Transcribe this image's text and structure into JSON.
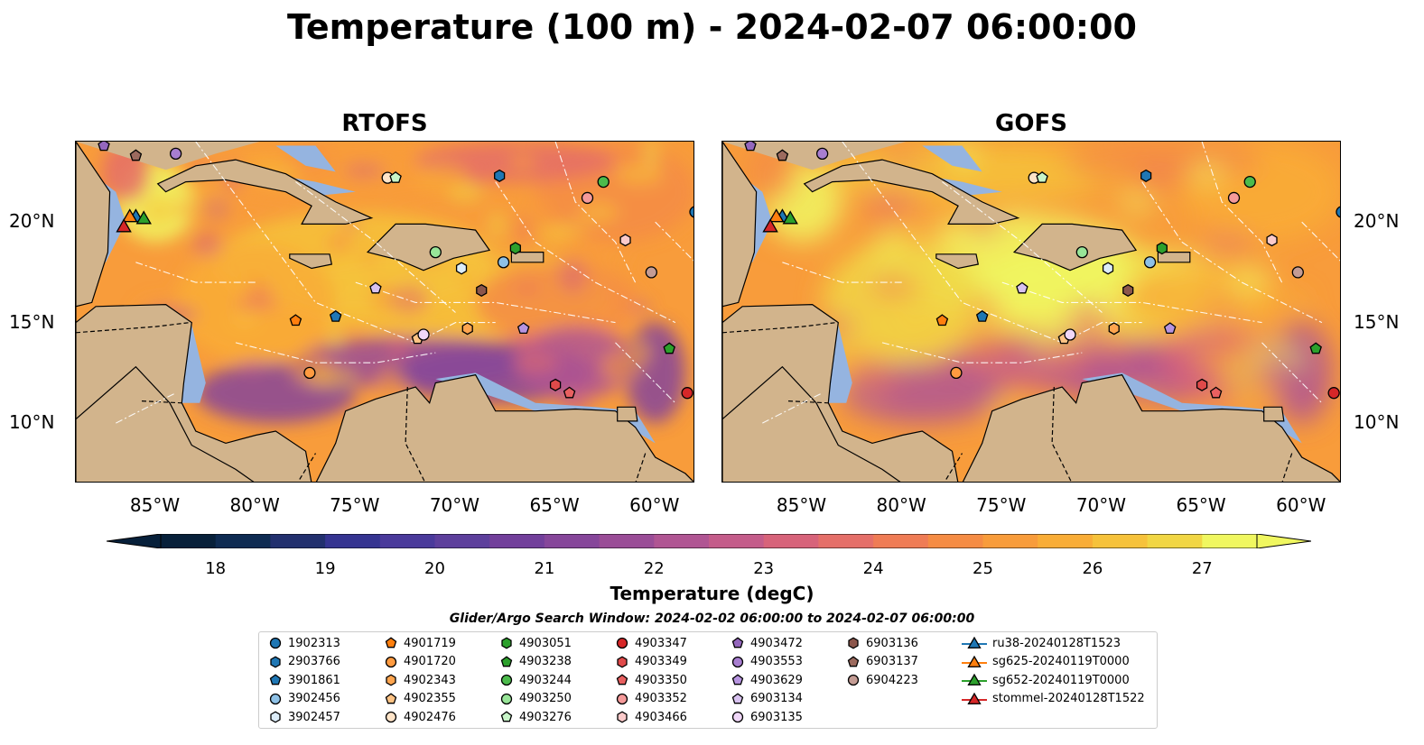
{
  "title": "Temperature (100 m) - 2024-02-07 06:00:00",
  "colors": {
    "land": "#d2b48c",
    "shallow": "#95b4e0",
    "deep": "#07203a",
    "cmap": [
      "#07203a",
      "#0e2b52",
      "#22306e",
      "#353491",
      "#4a3a9b",
      "#5d3f9c",
      "#723f9b",
      "#86469a",
      "#9a4d97",
      "#b05593",
      "#c45c8a",
      "#d7637a",
      "#e56f69",
      "#ef7c55",
      "#f58c44",
      "#f89c3b",
      "#f9ad37",
      "#f6c23b",
      "#f1d644",
      "#f0f760"
    ]
  },
  "chart_data": [
    {
      "type": "heatmap",
      "title": "RTOFS",
      "xticks": [
        "85°W",
        "80°W",
        "75°W",
        "70°W",
        "65°W",
        "60°W"
      ],
      "yticks": [
        "20°N",
        "15°N",
        "10°N"
      ],
      "xlim": [
        -89,
        -58
      ],
      "ylim": [
        7,
        24
      ]
    },
    {
      "type": "heatmap",
      "title": "GOFS",
      "xticks": [
        "85°W",
        "80°W",
        "75°W",
        "70°W",
        "65°W",
        "60°W"
      ],
      "yticks": [
        "20°N",
        "15°N",
        "10°N"
      ],
      "xlim": [
        -89,
        -58
      ],
      "ylim": [
        7,
        24
      ]
    }
  ],
  "colorbar": {
    "label": "Temperature (degC)",
    "ticks": [
      "18",
      "19",
      "20",
      "21",
      "22",
      "23",
      "24",
      "25",
      "26",
      "27"
    ],
    "min": 17.5,
    "max": 27.5
  },
  "search_window": "Glider/Argo Search Window: 2024-02-02 06:00:00 to 2024-02-07 06:00:00",
  "floats": [
    {
      "id": "1902313",
      "marker": "circle",
      "color": "#1f77b4",
      "lon": -58.0,
      "lat": 20.5
    },
    {
      "id": "2903766",
      "marker": "hexagon",
      "color": "#1f77b4",
      "lon": -67.8,
      "lat": 22.3
    },
    {
      "id": "3901861",
      "marker": "pentagon",
      "color": "#1f77b4",
      "lon": -76.0,
      "lat": 15.3
    },
    {
      "id": "3902456",
      "marker": "circle",
      "color": "#8ec1e6",
      "lon": -67.6,
      "lat": 18.0
    },
    {
      "id": "3902457",
      "marker": "hexagon",
      "color": "#dcecf8",
      "lon": -69.7,
      "lat": 17.7
    },
    {
      "id": "4901719",
      "marker": "pentagon",
      "color": "#ff7f0e",
      "lon": -78.0,
      "lat": 15.1
    },
    {
      "id": "4901720",
      "marker": "circle",
      "color": "#ff9b40",
      "lon": -77.3,
      "lat": 12.5
    },
    {
      "id": "4902343",
      "marker": "hexagon",
      "color": "#ffa54f",
      "lon": -69.4,
      "lat": 14.7
    },
    {
      "id": "4902355",
      "marker": "pentagon",
      "color": "#ffc384",
      "lon": -71.9,
      "lat": 14.2
    },
    {
      "id": "4902476",
      "marker": "circle",
      "color": "#ffe4c8",
      "lon": -73.4,
      "lat": 22.2
    },
    {
      "id": "4903051",
      "marker": "hexagon",
      "color": "#2ca02c",
      "lon": -67.0,
      "lat": 18.7
    },
    {
      "id": "4903238",
      "marker": "pentagon",
      "color": "#2ca02c",
      "lon": -59.3,
      "lat": 13.7
    },
    {
      "id": "4903244",
      "marker": "circle",
      "color": "#4cbb4c",
      "lon": -62.6,
      "lat": 22.0
    },
    {
      "id": "4903250",
      "marker": "circle",
      "color": "#98e598",
      "lon": -71.0,
      "lat": 18.5
    },
    {
      "id": "4903276",
      "marker": "pentagon",
      "color": "#c8f5c8",
      "lon": -73.0,
      "lat": 22.2
    },
    {
      "id": "4903347",
      "marker": "circle",
      "color": "#d62728",
      "lon": -58.4,
      "lat": 11.5
    },
    {
      "id": "4903349",
      "marker": "hexagon",
      "color": "#e04a4a",
      "lon": -65.0,
      "lat": 11.9
    },
    {
      "id": "4903350",
      "marker": "pentagon",
      "color": "#e86060",
      "lon": -64.3,
      "lat": 11.5
    },
    {
      "id": "4903352",
      "marker": "circle",
      "color": "#f59a9a",
      "lon": -63.4,
      "lat": 21.2
    },
    {
      "id": "4903466",
      "marker": "hexagon",
      "color": "#fbcaca",
      "lon": -61.5,
      "lat": 19.1
    },
    {
      "id": "4903472",
      "marker": "pentagon",
      "color": "#9467bd",
      "lon": -87.6,
      "lat": 23.8
    },
    {
      "id": "4903553",
      "marker": "circle",
      "color": "#a87ed0",
      "lon": -84.0,
      "lat": 23.4
    },
    {
      "id": "4903629",
      "marker": "pentagon",
      "color": "#b794e0",
      "lon": -66.6,
      "lat": 14.7
    },
    {
      "id": "6903134",
      "marker": "pentagon",
      "color": "#d8c2f0",
      "lon": -74.0,
      "lat": 16.7
    },
    {
      "id": "6903135",
      "marker": "circle",
      "color": "#f0d7f8",
      "lon": -71.6,
      "lat": 14.4
    },
    {
      "id": "6903136",
      "marker": "hexagon",
      "color": "#8c564b",
      "lon": -68.7,
      "lat": 16.6
    },
    {
      "id": "6903137",
      "marker": "pentagon",
      "color": "#9c6a5e",
      "lon": -86.0,
      "lat": 23.3
    },
    {
      "id": "6904223",
      "marker": "circle",
      "color": "#c49c94",
      "lon": -60.2,
      "lat": 17.5
    }
  ],
  "gliders": [
    {
      "id": "ru38-20240128T1523",
      "color": "#1f77b4",
      "lon": -86.0,
      "lat": 20.3
    },
    {
      "id": "sg625-20240119T0000",
      "color": "#ff7f0e",
      "lon": -86.3,
      "lat": 20.3
    },
    {
      "id": "sg652-20240119T0000",
      "color": "#2ca02c",
      "lon": -85.6,
      "lat": 20.2
    },
    {
      "id": "stommel-20240128T1522",
      "color": "#d62728",
      "lon": -86.6,
      "lat": 19.8
    }
  ]
}
